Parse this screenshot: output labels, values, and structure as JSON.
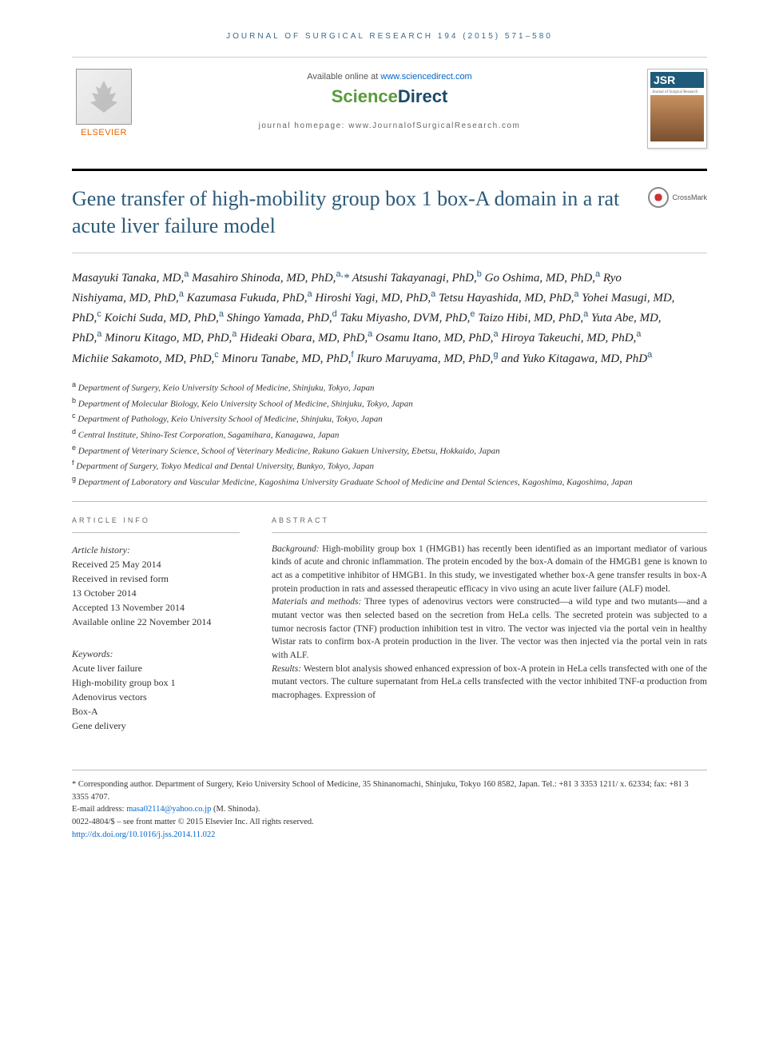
{
  "journal_header": "JOURNAL OF SURGICAL RESEARCH 194 (2015) 571–580",
  "header": {
    "available_text": "Available online at ",
    "sciencedirect_url": "www.sciencedirect.com",
    "sd_science": "Science",
    "sd_direct": "Direct",
    "homepage_label": "journal homepage: ",
    "homepage_url": "www.JournalofSurgicalResearch.com",
    "elsevier": "ELSEVIER",
    "cover_jsr": "JSR"
  },
  "crossmark": "CrossMark",
  "title": "Gene transfer of high-mobility group box 1 box-A domain in a rat acute liver failure model",
  "authors_html": "Masayuki Tanaka, MD,<sup>a</sup> Masahiro Shinoda, MD, PhD,<sup>a,</sup><span class='corresponding'>*</span> Atsushi Takayanagi, PhD,<sup>b</sup> Go Oshima, MD, PhD,<sup>a</sup> Ryo Nishiyama, MD, PhD,<sup>a</sup> Kazumasa Fukuda, PhD,<sup>a</sup> Hiroshi Yagi, MD, PhD,<sup>a</sup> Tetsu Hayashida, MD, PhD,<sup>a</sup> Yohei Masugi, MD, PhD,<sup>c</sup> Koichi Suda, MD, PhD,<sup>a</sup> Shingo Yamada, PhD,<sup>d</sup> Taku Miyasho, DVM, PhD,<sup>e</sup> Taizo Hibi, MD, PhD,<sup>a</sup> Yuta Abe, MD, PhD,<sup>a</sup> Minoru Kitago, MD, PhD,<sup>a</sup> Hideaki Obara, MD, PhD,<sup>a</sup> Osamu Itano, MD, PhD,<sup>a</sup> Hiroya Takeuchi, MD, PhD,<sup>a</sup> Michiie Sakamoto, MD, PhD,<sup>c</sup> Minoru Tanabe, MD, PhD,<sup>f</sup> Ikuro Maruyama, MD, PhD,<sup>g</sup> and Yuko Kitagawa, MD, PhD<sup>a</sup>",
  "affiliations": [
    {
      "sup": "a",
      "text": "Department of Surgery, Keio University School of Medicine, Shinjuku, Tokyo, Japan"
    },
    {
      "sup": "b",
      "text": "Department of Molecular Biology, Keio University School of Medicine, Shinjuku, Tokyo, Japan"
    },
    {
      "sup": "c",
      "text": "Department of Pathology, Keio University School of Medicine, Shinjuku, Tokyo, Japan"
    },
    {
      "sup": "d",
      "text": "Central Institute, Shino-Test Corporation, Sagamihara, Kanagawa, Japan"
    },
    {
      "sup": "e",
      "text": "Department of Veterinary Science, School of Veterinary Medicine, Rakuno Gakuen University, Ebetsu, Hokkaido, Japan"
    },
    {
      "sup": "f",
      "text": "Department of Surgery, Tokyo Medical and Dental University, Bunkyo, Tokyo, Japan"
    },
    {
      "sup": "g",
      "text": "Department of Laboratory and Vascular Medicine, Kagoshima University Graduate School of Medicine and Dental Sciences, Kagoshima, Kagoshima, Japan"
    }
  ],
  "article_info": {
    "label": "ARTICLE INFO",
    "history_title": "Article history:",
    "history": [
      "Received 25 May 2014",
      "Received in revised form",
      "13 October 2014",
      "Accepted 13 November 2014",
      "Available online 22 November 2014"
    ],
    "keywords_title": "Keywords:",
    "keywords": [
      "Acute liver failure",
      "High-mobility group box 1",
      "Adenovirus vectors",
      "Box-A",
      "Gene delivery"
    ]
  },
  "abstract": {
    "label": "ABSTRACT",
    "background_label": "Background:",
    "background": " High-mobility group box 1 (HMGB1) has recently been identified as an important mediator of various kinds of acute and chronic inflammation. The protein encoded by the box-A domain of the HMGB1 gene is known to act as a competitive inhibitor of HMGB1. In this study, we investigated whether box-A gene transfer results in box-A protein production in rats and assessed therapeutic efficacy in vivo using an acute liver failure (ALF) model.",
    "methods_label": "Materials and methods:",
    "methods": " Three types of adenovirus vectors were constructed—a wild type and two mutants—and a mutant vector was then selected based on the secretion from HeLa cells. The secreted protein was subjected to a tumor necrosis factor (TNF) production inhibition test in vitro. The vector was injected via the portal vein in healthy Wistar rats to confirm box-A protein production in the liver. The vector was then injected via the portal vein in rats with ALF.",
    "results_label": "Results:",
    "results": " Western blot analysis showed enhanced expression of box-A protein in HeLa cells transfected with one of the mutant vectors. The culture supernatant from HeLa cells transfected with the vector inhibited TNF-α production from macrophages. Expression of"
  },
  "footer": {
    "corresponding": "* Corresponding author. Department of Surgery, Keio University School of Medicine, 35 Shinanomachi, Shinjuku, Tokyo 160 8582, Japan. Tel.: +81 3 3353 1211/ x. 62334; fax: +81 3 3355 4707.",
    "email_label": "E-mail address: ",
    "email": "masa02114@yahoo.co.jp",
    "email_suffix": " (M. Shinoda).",
    "issn": "0022-4804/$ – see front matter © 2015 Elsevier Inc. All rights reserved.",
    "doi": "http://dx.doi.org/10.1016/j.jss.2014.11.022"
  },
  "colors": {
    "accent_blue": "#2a5a7a",
    "link_blue": "#0066cc",
    "elsevier_orange": "#eb6500",
    "sd_green": "#5a9a3a",
    "sd_blue": "#1a4a6a",
    "text": "#333333",
    "divider": "#bbbbbb"
  }
}
